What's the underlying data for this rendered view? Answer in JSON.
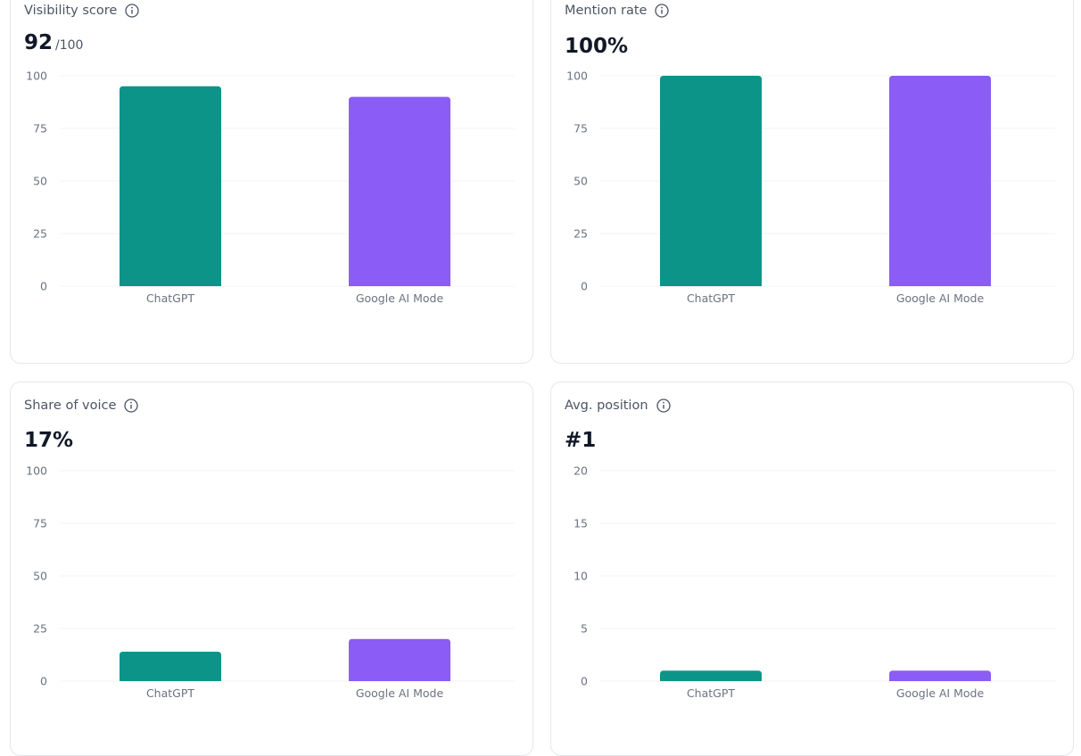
{
  "colors": {
    "chatgpt": "#0d9488",
    "google_ai_mode": "#8b5cf6",
    "grid": "#f1f3f5",
    "axis_text": "#6b7280"
  },
  "icons": {
    "info": "info-circle-icon"
  },
  "cards": [
    {
      "title": "Visibility score",
      "value": "92",
      "value_suffix": "/100",
      "chart_id": "visibility"
    },
    {
      "title": "Mention rate",
      "value": "100%",
      "value_suffix": "",
      "chart_id": "mention"
    },
    {
      "title": "Share of voice",
      "value": "17%",
      "value_suffix": "",
      "chart_id": "share"
    },
    {
      "title": "Avg. position",
      "value": "#1",
      "value_suffix": "",
      "chart_id": "position"
    }
  ],
  "chart_data": [
    {
      "id": "visibility",
      "type": "bar",
      "title": "Visibility score",
      "categories": [
        "ChatGPT",
        "Google AI Mode"
      ],
      "values": [
        95,
        90
      ],
      "colors": [
        "#0d9488",
        "#8b5cf6"
      ],
      "ylim": [
        0,
        100
      ],
      "yticks": [
        0,
        25,
        50,
        75,
        100
      ],
      "grid": true
    },
    {
      "id": "mention",
      "type": "bar",
      "title": "Mention rate",
      "categories": [
        "ChatGPT",
        "Google AI Mode"
      ],
      "values": [
        100,
        100
      ],
      "colors": [
        "#0d9488",
        "#8b5cf6"
      ],
      "ylim": [
        0,
        100
      ],
      "yticks": [
        0,
        25,
        50,
        75,
        100
      ],
      "grid": true
    },
    {
      "id": "share",
      "type": "bar",
      "title": "Share of voice",
      "categories": [
        "ChatGPT",
        "Google AI Mode"
      ],
      "values": [
        14,
        20
      ],
      "colors": [
        "#0d9488",
        "#8b5cf6"
      ],
      "ylim": [
        0,
        100
      ],
      "yticks": [
        0,
        25,
        50,
        75,
        100
      ],
      "grid": true
    },
    {
      "id": "position",
      "type": "bar",
      "title": "Avg. position",
      "categories": [
        "ChatGPT",
        "Google AI Mode"
      ],
      "values": [
        1,
        1
      ],
      "colors": [
        "#0d9488",
        "#8b5cf6"
      ],
      "ylim": [
        0,
        20
      ],
      "yticks": [
        0,
        5,
        10,
        15,
        20
      ],
      "grid": true
    }
  ]
}
